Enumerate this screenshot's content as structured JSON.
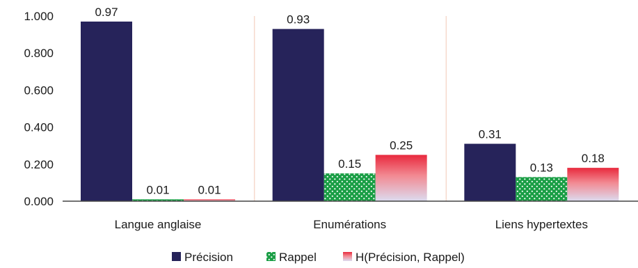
{
  "chart_data": {
    "type": "bar",
    "categories": [
      "Langue anglaise",
      "Enumérations",
      "Liens hypertextes"
    ],
    "series": [
      {
        "name": "Précision",
        "values": [
          0.97,
          0.93,
          0.31
        ],
        "labels": [
          "0.97",
          "0.93",
          "0.31"
        ],
        "color": "#26235a",
        "fill": "solid"
      },
      {
        "name": "Rappel",
        "values": [
          0.01,
          0.15,
          0.13
        ],
        "labels": [
          "0.01",
          "0.15",
          "0.13"
        ],
        "color": "#1a9e45",
        "fill": "dotted"
      },
      {
        "name": "H(Précision, Rappel)",
        "values": [
          0.01,
          0.25,
          0.18
        ],
        "labels": [
          "0.01",
          "0.25",
          "0.18"
        ],
        "color": "#e8293d",
        "fill": "gradient"
      }
    ],
    "ylim": [
      0,
      1
    ],
    "yticks": [
      "0.000",
      "0.200",
      "0.400",
      "0.600",
      "0.800",
      "1.000"
    ],
    "grid": false,
    "legend_position": "bottom",
    "category_separators": true
  }
}
